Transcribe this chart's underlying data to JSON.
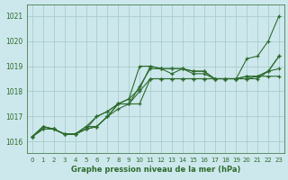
{
  "title": "",
  "xlabel": "Graphe pression niveau de la mer (hPa)",
  "ylabel": "",
  "background_color": "#cde8ec",
  "grid_color": "#aacccc",
  "line_color": "#2d6b2d",
  "ylim": [
    1015.55,
    1021.45
  ],
  "xlim": [
    -0.5,
    23.5
  ],
  "yticks": [
    1016,
    1017,
    1018,
    1019,
    1020,
    1021
  ],
  "xticks": [
    0,
    1,
    2,
    3,
    4,
    5,
    6,
    7,
    8,
    9,
    10,
    11,
    12,
    13,
    14,
    15,
    16,
    17,
    18,
    19,
    20,
    21,
    22,
    23
  ],
  "series": [
    [
      1016.2,
      1016.6,
      1016.5,
      1016.3,
      1016.3,
      1016.5,
      1017.0,
      1017.2,
      1017.5,
      1017.7,
      1018.1,
      1019.0,
      1018.9,
      1018.9,
      1018.9,
      1018.8,
      1018.8,
      1018.5,
      1018.5,
      1018.5,
      1019.3,
      1019.4,
      1020.0,
      1021.0
    ],
    [
      1016.2,
      1016.6,
      1016.5,
      1016.3,
      1016.3,
      1016.6,
      1017.0,
      1017.2,
      1017.5,
      1017.5,
      1018.2,
      1018.9,
      1018.9,
      1018.7,
      1018.9,
      1018.7,
      1018.7,
      1018.5,
      1018.5,
      1018.5,
      1018.6,
      1018.6,
      1018.6,
      1018.6
    ],
    [
      1016.2,
      1016.5,
      1016.5,
      1016.3,
      1016.3,
      1016.6,
      1016.6,
      1017.0,
      1017.3,
      1017.5,
      1017.5,
      1018.5,
      1018.5,
      1018.5,
      1018.5,
      1018.5,
      1018.5,
      1018.5,
      1018.5,
      1018.5,
      1018.5,
      1018.6,
      1018.8,
      1019.4
    ],
    [
      1016.2,
      1016.5,
      1016.5,
      1016.3,
      1016.3,
      1016.5,
      1016.6,
      1017.0,
      1017.5,
      1017.5,
      1018.0,
      1018.5,
      1018.5,
      1018.5,
      1018.5,
      1018.5,
      1018.5,
      1018.5,
      1018.5,
      1018.5,
      1018.5,
      1018.5,
      1018.8,
      1018.9
    ],
    [
      1016.2,
      1016.6,
      1016.5,
      1016.3,
      1016.3,
      1016.5,
      1016.6,
      1017.0,
      1017.5,
      1017.7,
      1019.0,
      1019.0,
      1018.9,
      1018.9,
      1018.9,
      1018.8,
      1018.8,
      1018.5,
      1018.5,
      1018.5,
      1018.6,
      1018.6,
      1018.8,
      1019.4
    ]
  ],
  "figsize": [
    3.2,
    2.0
  ],
  "dpi": 100
}
